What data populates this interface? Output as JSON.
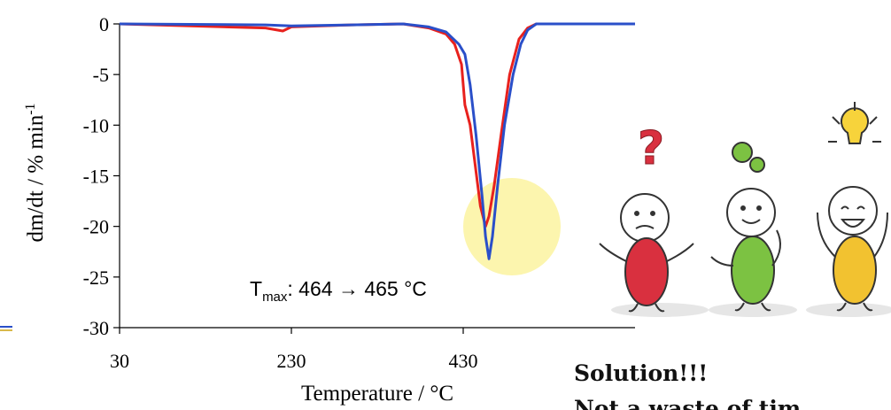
{
  "chart_data": {
    "type": "line",
    "x_label": "Temperature / °C",
    "y_label": {
      "text": "dm/dt / % min",
      "superscript": "-1"
    },
    "annotation": {
      "base": "T",
      "subscript": "max",
      "text": ": 464 → 465 °C"
    },
    "xlim": [
      30,
      630
    ],
    "xticks": [
      30,
      230,
      430
    ],
    "ylim": [
      -30,
      0
    ],
    "yticks": [
      0,
      -5,
      -10,
      -15,
      -20,
      -25,
      -30
    ],
    "series": [
      {
        "color": "#e8211d",
        "x": [
          30,
          200,
          220,
          230,
          300,
          360,
          390,
          410,
          420,
          428,
          432,
          438,
          444,
          450,
          456,
          460,
          466,
          474,
          484,
          495,
          505,
          515,
          630
        ],
        "values": [
          0,
          -0.4,
          -0.7,
          -0.3,
          -0.1,
          0,
          -0.4,
          -1,
          -2,
          -4,
          -8,
          -10,
          -14,
          -18,
          -20,
          -19,
          -16,
          -11,
          -5,
          -1.5,
          -0.4,
          0,
          0
        ]
      },
      {
        "color": "#2a4fc9",
        "x": [
          30,
          200,
          230,
          300,
          360,
          390,
          410,
          425,
          432,
          438,
          445,
          452,
          456,
          460,
          464,
          470,
          478,
          488,
          497,
          505,
          515,
          630
        ],
        "values": [
          0,
          -0.1,
          -0.2,
          -0.1,
          0,
          -0.3,
          -0.8,
          -2,
          -3,
          -6,
          -11,
          -17,
          -21,
          -23.2,
          -21,
          -16,
          -10,
          -5,
          -2,
          -0.6,
          0,
          0
        ]
      }
    ]
  },
  "side_text": {
    "headline": "Solution!!!",
    "subline": "Not a waste of tim"
  }
}
